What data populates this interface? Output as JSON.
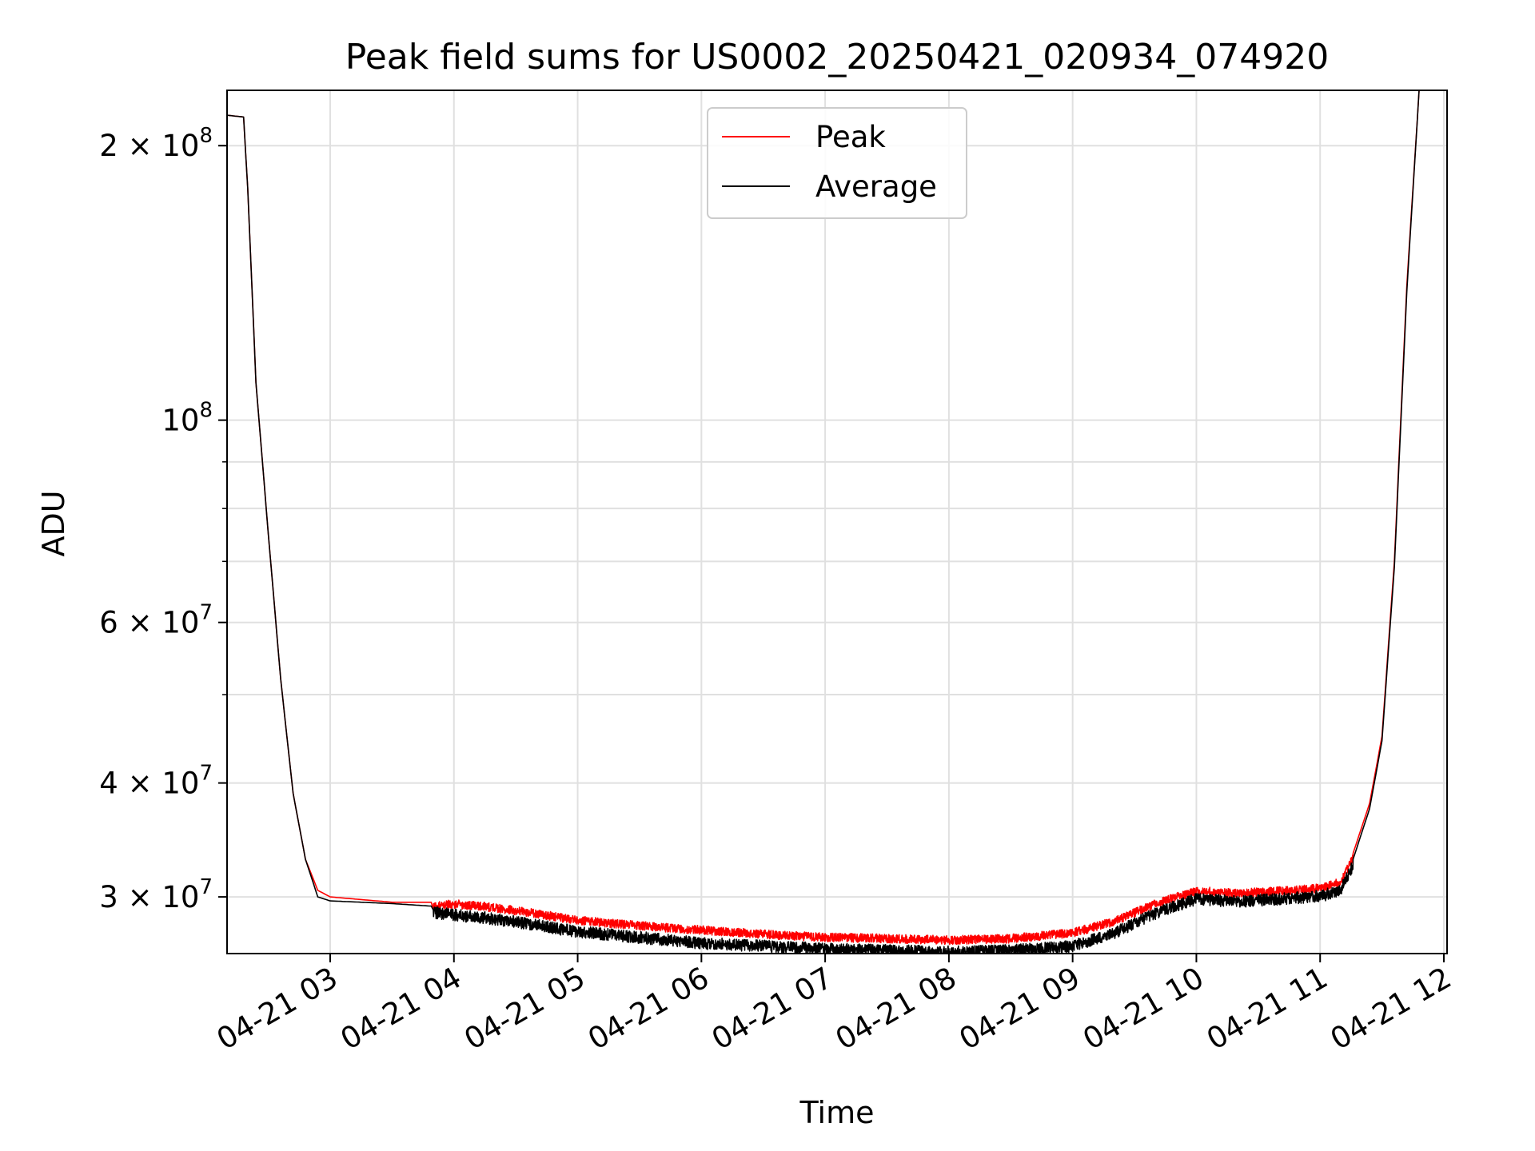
{
  "chart_data": {
    "type": "line",
    "title": "Peak field sums for US0002_20250421_020934_074920",
    "xlabel": "Time",
    "ylabel": "ADU",
    "yscale": "log",
    "grid": true,
    "legend_position": "upper center",
    "x_range": [
      "2025-04-21 02:09",
      "2025-04-21 12:00"
    ],
    "ylim": [
      26000000,
      230000000
    ],
    "x_ticks": [
      "04-21 03",
      "04-21 04",
      "04-21 05",
      "04-21 06",
      "04-21 07",
      "04-21 08",
      "04-21 09",
      "04-21 10",
      "04-21 11",
      "04-21 12"
    ],
    "y_major_ticks": [
      {
        "value": 30000000,
        "base": "3 × 10",
        "exp": "7"
      },
      {
        "value": 40000000,
        "base": "4 × 10",
        "exp": "7"
      },
      {
        "value": 60000000,
        "base": "6 × 10",
        "exp": "7"
      },
      {
        "value": 100000000,
        "base": "10",
        "exp": "8"
      },
      {
        "value": 200000000,
        "base": "2 × 10",
        "exp": "8"
      }
    ],
    "y_minor_ticks": [
      50000000,
      70000000,
      80000000,
      90000000
    ],
    "series": [
      {
        "name": "Peak",
        "color": "#ff0000",
        "points": [
          [
            "02:10",
            216000000
          ],
          [
            "02:18",
            215000000
          ],
          [
            "02:20",
            180000000
          ],
          [
            "02:24",
            110000000
          ],
          [
            "02:30",
            75000000
          ],
          [
            "02:36",
            52000000
          ],
          [
            "02:42",
            39000000
          ],
          [
            "02:48",
            33000000
          ],
          [
            "02:54",
            30500000
          ],
          [
            "03:00",
            30000000
          ],
          [
            "03:30",
            29600000
          ],
          [
            "03:50",
            29600000
          ],
          [
            "04:00",
            29800000
          ],
          [
            "04:15",
            29600000
          ],
          [
            "04:30",
            29300000
          ],
          [
            "05:00",
            28600000
          ],
          [
            "05:30",
            28200000
          ],
          [
            "06:00",
            27900000
          ],
          [
            "06:30",
            27600000
          ],
          [
            "07:00",
            27400000
          ],
          [
            "07:30",
            27300000
          ],
          [
            "08:00",
            27200000
          ],
          [
            "08:30",
            27300000
          ],
          [
            "09:00",
            27700000
          ],
          [
            "09:20",
            28500000
          ],
          [
            "09:40",
            29800000
          ],
          [
            "10:00",
            30800000
          ],
          [
            "10:20",
            30600000
          ],
          [
            "10:40",
            30800000
          ],
          [
            "11:00",
            31000000
          ],
          [
            "11:10",
            31500000
          ],
          [
            "11:16",
            33500000
          ],
          [
            "11:24",
            38000000
          ],
          [
            "11:30",
            45000000
          ],
          [
            "11:36",
            70000000
          ],
          [
            "11:42",
            140000000
          ],
          [
            "11:48",
            230000000
          ]
        ]
      },
      {
        "name": "Average",
        "color": "#000000",
        "points": [
          [
            "02:10",
            216000000
          ],
          [
            "02:18",
            215000000
          ],
          [
            "02:20",
            180000000
          ],
          [
            "02:24",
            110000000
          ],
          [
            "02:30",
            75000000
          ],
          [
            "02:36",
            52000000
          ],
          [
            "02:42",
            39000000
          ],
          [
            "02:48",
            33000000
          ],
          [
            "02:54",
            30000000
          ],
          [
            "03:00",
            29700000
          ],
          [
            "03:30",
            29500000
          ],
          [
            "03:50",
            29300000
          ],
          [
            "04:00",
            29100000
          ],
          [
            "04:15",
            28900000
          ],
          [
            "04:30",
            28600000
          ],
          [
            "05:00",
            27900000
          ],
          [
            "05:30",
            27500000
          ],
          [
            "06:00",
            27100000
          ],
          [
            "06:30",
            26900000
          ],
          [
            "07:00",
            26700000
          ],
          [
            "07:30",
            26600000
          ],
          [
            "08:00",
            26500000
          ],
          [
            "08:30",
            26600000
          ],
          [
            "09:00",
            26900000
          ],
          [
            "09:20",
            27800000
          ],
          [
            "09:40",
            29200000
          ],
          [
            "10:00",
            30300000
          ],
          [
            "10:20",
            30100000
          ],
          [
            "10:40",
            30300000
          ],
          [
            "11:00",
            30500000
          ],
          [
            "11:10",
            31000000
          ],
          [
            "11:16",
            33000000
          ],
          [
            "11:24",
            37500000
          ],
          [
            "11:30",
            44500000
          ],
          [
            "11:36",
            69000000
          ],
          [
            "11:42",
            138000000
          ],
          [
            "11:48",
            230000000
          ]
        ]
      }
    ]
  }
}
